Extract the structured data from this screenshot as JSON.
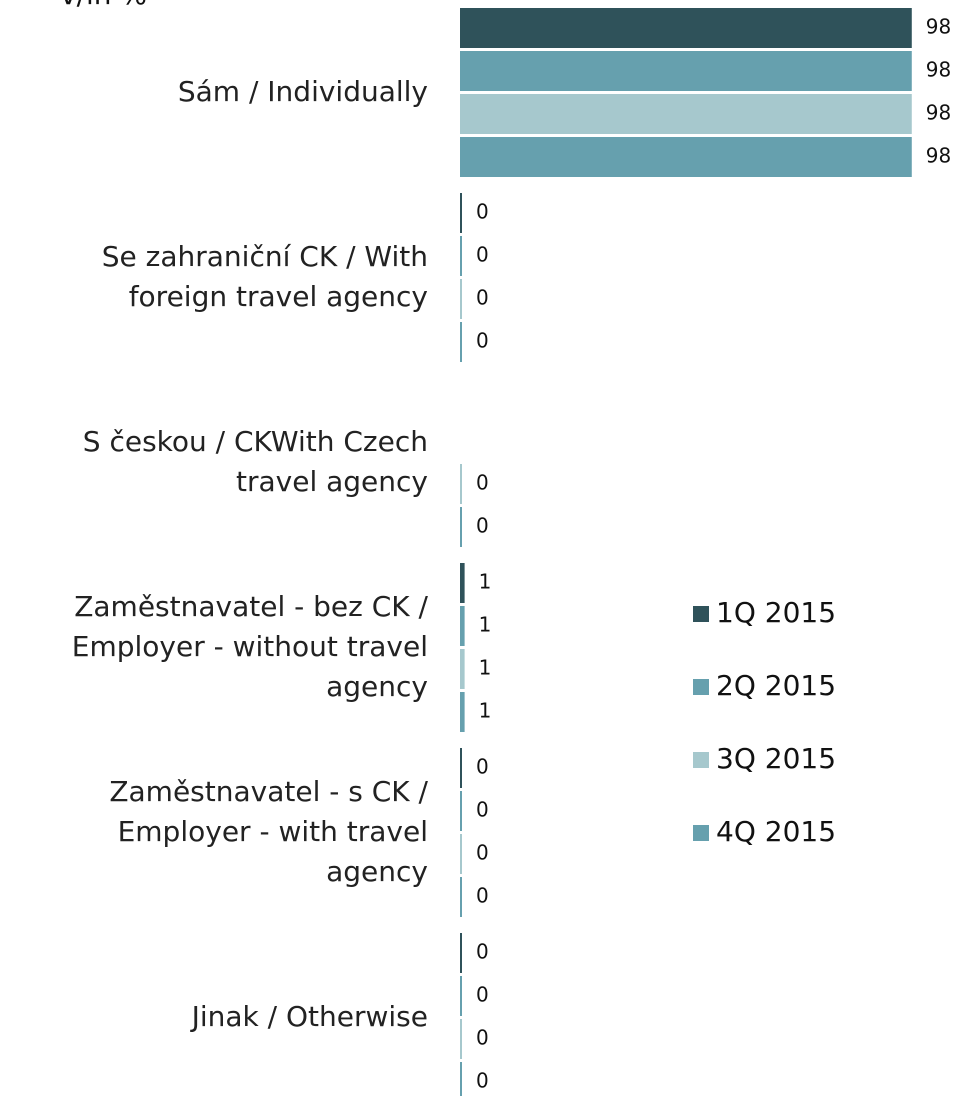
{
  "chart_data": {
    "type": "bar",
    "orientation": "horizontal",
    "title": "v/in %",
    "categories": [
      "Sám / Individually",
      "Se zahraniční CK / With foreign travel agency",
      "S českou / CKWith Czech travel agency",
      "Zaměstnavatel - bez CK / Employer - without travel agency",
      "Zaměstnavatel - s CK / Employer - with travel agency",
      "Jinak / Otherwise"
    ],
    "series": [
      {
        "name": "1Q 2015",
        "color": "#2f525a",
        "values": [
          98,
          0,
          null,
          1,
          0,
          0
        ]
      },
      {
        "name": "2Q 2015",
        "color": "#66a0ae",
        "values": [
          98,
          0,
          null,
          1,
          0,
          0
        ]
      },
      {
        "name": "3Q 2015",
        "color": "#a6c8cd",
        "values": [
          98,
          0,
          0,
          1,
          0,
          0
        ]
      },
      {
        "name": "4Q 2015",
        "color": "#66a0ae",
        "values": [
          98,
          0,
          0,
          1,
          0,
          0
        ]
      }
    ],
    "xlim": [
      0,
      100
    ],
    "legend": "right"
  }
}
